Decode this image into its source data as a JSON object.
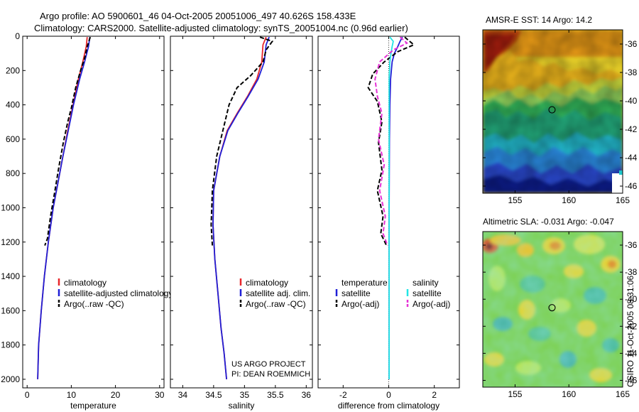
{
  "header": {
    "line1": "Argo profile: AO 5900601_46 04-Oct-2005 20051006_497 40.626S 158.433E",
    "line2": "Climatology: CARS2000. Satellite-adjusted climatology: synTS_20051004.nc (0.96d earlier)"
  },
  "credits": {
    "project": "US ARGO PROJECT",
    "pi": "PI: DEAN ROEMMICH",
    "timestamp": "CSIRO 11-Oct-2005 08:31:06"
  },
  "colors": {
    "climatology": "#e8262b",
    "satellite": "#1f1fd6",
    "argo": "#000000",
    "sal_satellite": "#22e5e5",
    "sal_argo": "#e632d6"
  },
  "chart_data": [
    {
      "id": "temperature",
      "type": "line",
      "xlabel": "temperature",
      "ylabel": "",
      "xlim": [
        -1,
        31
      ],
      "ylim": [
        0,
        2050
      ],
      "y_inverted": true,
      "xticks": [
        0,
        10,
        20,
        30
      ],
      "yticks": [
        0,
        200,
        400,
        600,
        800,
        1000,
        1200,
        1400,
        1600,
        1800,
        2000
      ],
      "legend": [
        "climatology",
        "satellite-adjusted climatology",
        "Argo(..raw -QC)"
      ],
      "series": [
        {
          "name": "climatology",
          "color_key": "climatology",
          "dash": false,
          "x": [
            13.6,
            13.4,
            12.6,
            11.6,
            10.4,
            9.2,
            8.1,
            7.0,
            5.9,
            4.8,
            3.9,
            3.2,
            2.6,
            2.4
          ],
          "y": [
            5,
            60,
            150,
            250,
            400,
            550,
            700,
            850,
            1000,
            1200,
            1400,
            1600,
            1800,
            2000
          ]
        },
        {
          "name": "satellite-adjusted climatology",
          "color_key": "satellite",
          "dash": false,
          "x": [
            14.2,
            13.9,
            13.0,
            11.9,
            10.5,
            9.3,
            8.1,
            7.0,
            5.9,
            4.8,
            3.9,
            3.2,
            2.6,
            2.4
          ],
          "y": [
            5,
            60,
            150,
            250,
            400,
            550,
            700,
            850,
            1000,
            1200,
            1400,
            1600,
            1800,
            2000
          ]
        },
        {
          "name": "Argo(..raw -QC)",
          "color_key": "argo",
          "dash": true,
          "x": [
            14.3,
            13.6,
            13.1,
            12.1,
            11.0,
            10.0,
            9.2,
            8.2,
            7.2,
            6.3,
            5.3,
            4.6,
            4.0
          ],
          "y": [
            5,
            60,
            120,
            200,
            300,
            420,
            500,
            620,
            760,
            900,
            1050,
            1180,
            1220
          ]
        }
      ]
    },
    {
      "id": "salinity",
      "type": "line",
      "xlabel": "salinity",
      "ylabel": "",
      "xlim": [
        33.8,
        36.1
      ],
      "ylim": [
        0,
        2050
      ],
      "y_inverted": true,
      "xticks": [
        34,
        34.5,
        35,
        35.5,
        36
      ],
      "legend": [
        "climatology",
        "satellite adj. clim.",
        "Argo(..raw -QC)"
      ],
      "series": [
        {
          "name": "climatology",
          "color_key": "climatology",
          "dash": false,
          "x": [
            35.35,
            35.3,
            35.28,
            35.2,
            35.05,
            34.88,
            34.72,
            34.6,
            34.5,
            34.49,
            34.52,
            34.57,
            34.62,
            34.67,
            34.71
          ],
          "y": [
            5,
            50,
            150,
            250,
            350,
            450,
            550,
            700,
            900,
            1100,
            1300,
            1500,
            1700,
            1850,
            2000
          ]
        },
        {
          "name": "satellite adj. clim.",
          "color_key": "satellite",
          "dash": false,
          "x": [
            35.4,
            35.35,
            35.32,
            35.22,
            35.06,
            34.89,
            34.73,
            34.6,
            34.5,
            34.49,
            34.52,
            34.57,
            34.62,
            34.67,
            34.71
          ],
          "y": [
            5,
            50,
            150,
            250,
            350,
            450,
            550,
            700,
            900,
            1100,
            1300,
            1500,
            1700,
            1850,
            2000
          ]
        },
        {
          "name": "Argo(..raw -QC)",
          "color_key": "argo",
          "dash": true,
          "x": [
            35.25,
            35.45,
            35.35,
            35.3,
            35.1,
            34.88,
            34.75,
            34.65,
            34.55,
            34.48,
            34.46,
            34.48
          ],
          "y": [
            5,
            30,
            80,
            150,
            230,
            300,
            400,
            550,
            700,
            900,
            1100,
            1220
          ]
        }
      ]
    },
    {
      "id": "difference",
      "type": "line",
      "xlabel": "difference from climatology",
      "ylabel": "",
      "xlim": [
        -3.1,
        3.1
      ],
      "ylim": [
        0,
        2050
      ],
      "y_inverted": true,
      "xticks": [
        -2,
        0,
        2
      ],
      "legend": [
        "temperature satellite",
        "temperature Argo(-adj)",
        "salinity satellite",
        "salinity Argo(-adj)"
      ],
      "legend_headers": [
        "temperature",
        "salinity"
      ],
      "legend_labels": {
        "t_sat": "satellite",
        "t_argo": "Argo(-adj)",
        "s_sat": "satellite",
        "s_argo": "Argo(-adj)"
      },
      "series": [
        {
          "name": "temperature satellite",
          "color_key": "satellite",
          "dash": false,
          "x": [
            0.6,
            0.5,
            0.4,
            0.25,
            0.15,
            0.08,
            0.05,
            0.03,
            0.02,
            0.02,
            0.02
          ],
          "y": [
            5,
            30,
            60,
            100,
            150,
            250,
            400,
            600,
            1000,
            1500,
            2000
          ]
        },
        {
          "name": "temperature Argo(-adj)",
          "color_key": "argo",
          "dash": true,
          "x": [
            0.7,
            1.1,
            0.4,
            -0.2,
            -0.7,
            -0.9,
            -0.5,
            -0.3,
            -0.45,
            -0.3,
            -0.5,
            -0.25,
            -0.35,
            -0.1
          ],
          "y": [
            5,
            50,
            90,
            150,
            220,
            300,
            380,
            500,
            620,
            780,
            900,
            1050,
            1150,
            1220
          ]
        },
        {
          "name": "salinity satellite",
          "color_key": "sal_satellite",
          "dash": false,
          "x": [
            0.05,
            0.2,
            0.15,
            0.1,
            0.05,
            0.02,
            0.02,
            0.02,
            0.02,
            0.02
          ],
          "y": [
            5,
            30,
            60,
            100,
            150,
            250,
            400,
            800,
            1400,
            2000
          ]
        },
        {
          "name": "salinity Argo(-adj)",
          "color_key": "sal_argo",
          "dash": true,
          "x": [
            0.5,
            0.8,
            0.2,
            -0.4,
            -0.6,
            -0.5,
            -0.3,
            -0.45,
            -0.2,
            -0.4,
            -0.15,
            -0.25,
            -0.05
          ],
          "y": [
            5,
            40,
            80,
            150,
            250,
            350,
            450,
            600,
            750,
            900,
            1050,
            1150,
            1220
          ]
        }
      ]
    },
    {
      "id": "sst_map",
      "type": "heatmap",
      "title": "AMSR-E SST: 14 Argo: 14.2",
      "xlim": [
        152,
        165
      ],
      "ylim": [
        -46.5,
        -35
      ],
      "xticks": [
        155,
        160,
        165
      ],
      "yticks": [
        -36,
        -38,
        -40,
        -42,
        -44,
        -46
      ],
      "marker": {
        "lon": 158.433,
        "lat": -40.626
      }
    },
    {
      "id": "sla_map",
      "type": "heatmap",
      "title": "Altimetric SLA: -0.031 Argo: -0.047",
      "xlim": [
        152,
        165
      ],
      "ylim": [
        -46.5,
        -35
      ],
      "xticks": [
        155,
        160,
        165
      ],
      "yticks": [
        -36,
        -38,
        -40,
        -42,
        -44,
        -46
      ],
      "marker": {
        "lon": 158.433,
        "lat": -40.626
      }
    }
  ]
}
